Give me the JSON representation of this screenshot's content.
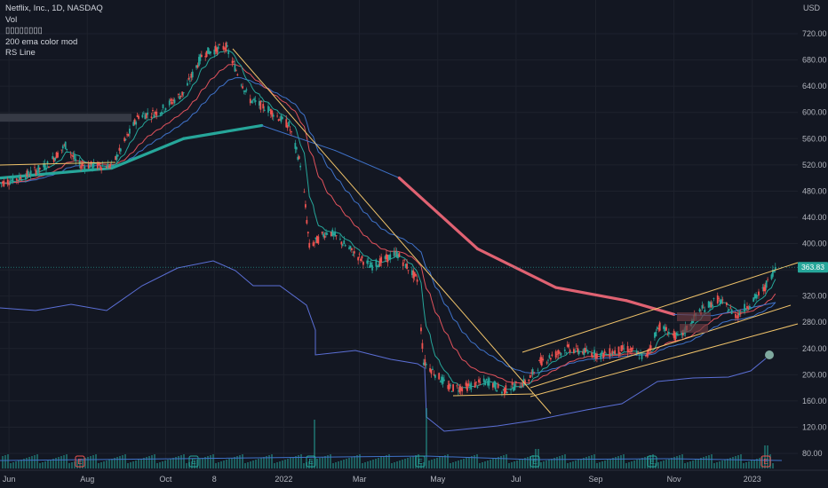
{
  "header": {
    "symbol_line": "Netflix, Inc., 1D, NASDAQ",
    "vol_label": "Vol",
    "indicator_label": "200 ema color mod",
    "rs_label": "RS Line",
    "garbled_label": "▯▯▯▯▯▯▯▯"
  },
  "currency": "USD",
  "current_price": "363.83",
  "colors": {
    "background": "#131722",
    "up": "#26a69a",
    "down": "#ef5350",
    "trendline": "#f0c36a",
    "rs_line": "#5b6fd6",
    "ema_up": "#26a69a",
    "ema_down": "#e06272",
    "ma_blue": "#3f72c9",
    "ma_red": "#e0525c"
  },
  "chart_data": {
    "type": "candlestick",
    "title": "Netflix, Inc., 1D, NASDAQ",
    "ylim": [
      60,
      740
    ],
    "y_ticks": [
      "720.00",
      "680.00",
      "640.00",
      "600.00",
      "560.00",
      "520.00",
      "480.00",
      "440.00",
      "400.00",
      "360.00",
      "320.00",
      "280.00",
      "240.00",
      "200.00",
      "160.00",
      "120.00",
      "80.00"
    ],
    "x_ticks": [
      "Jun",
      "Aug",
      "Oct",
      "8",
      "2022",
      "Mar",
      "May",
      "Jul",
      "Sep",
      "Nov",
      "2023"
    ],
    "price_path": [
      {
        "x": "2021-05-25",
        "y": 492
      },
      {
        "x": "2021-06-10",
        "y": 500
      },
      {
        "x": "2021-07-01",
        "y": 520
      },
      {
        "x": "2021-07-15",
        "y": 550
      },
      {
        "x": "2021-07-25",
        "y": 520
      },
      {
        "x": "2021-08-20",
        "y": 518
      },
      {
        "x": "2021-09-10",
        "y": 595
      },
      {
        "x": "2021-09-25",
        "y": 600
      },
      {
        "x": "2021-10-15",
        "y": 630
      },
      {
        "x": "2021-10-30",
        "y": 690
      },
      {
        "x": "2021-11-17",
        "y": 700
      },
      {
        "x": "2021-12-05",
        "y": 620
      },
      {
        "x": "2021-12-20",
        "y": 605
      },
      {
        "x": "2022-01-05",
        "y": 580
      },
      {
        "x": "2022-01-15",
        "y": 515
      },
      {
        "x": "2022-01-21",
        "y": 395
      },
      {
        "x": "2022-02-05",
        "y": 420
      },
      {
        "x": "2022-02-25",
        "y": 385
      },
      {
        "x": "2022-03-10",
        "y": 365
      },
      {
        "x": "2022-03-30",
        "y": 385
      },
      {
        "x": "2022-04-15",
        "y": 345
      },
      {
        "x": "2022-04-20",
        "y": 220
      },
      {
        "x": "2022-05-10",
        "y": 180
      },
      {
        "x": "2022-05-20",
        "y": 180
      },
      {
        "x": "2022-06-10",
        "y": 190
      },
      {
        "x": "2022-06-20",
        "y": 175
      },
      {
        "x": "2022-07-10",
        "y": 190
      },
      {
        "x": "2022-07-20",
        "y": 220
      },
      {
        "x": "2022-08-10",
        "y": 240
      },
      {
        "x": "2022-09-05",
        "y": 230
      },
      {
        "x": "2022-09-25",
        "y": 240
      },
      {
        "x": "2022-10-10",
        "y": 225
      },
      {
        "x": "2022-10-20",
        "y": 275
      },
      {
        "x": "2022-11-05",
        "y": 255
      },
      {
        "x": "2022-11-20",
        "y": 295
      },
      {
        "x": "2022-12-05",
        "y": 315
      },
      {
        "x": "2022-12-20",
        "y": 290
      },
      {
        "x": "2023-01-10",
        "y": 330
      },
      {
        "x": "2023-01-19",
        "y": 364
      }
    ],
    "ema200_path": [
      {
        "x": "2021-05-25",
        "y": 500
      },
      {
        "x": "2021-08-20",
        "y": 515
      },
      {
        "x": "2021-10-15",
        "y": 560
      },
      {
        "x": "2021-12-15",
        "y": 580
      },
      {
        "x": "2022-02-10",
        "y": 542
      },
      {
        "x": "2022-04-01",
        "y": 500
      },
      {
        "x": "2022-06-01",
        "y": 392
      },
      {
        "x": "2022-08-01",
        "y": 333
      },
      {
        "x": "2022-09-25",
        "y": 313
      },
      {
        "x": "2022-11-01",
        "y": 292
      },
      {
        "x": "2022-12-01",
        "y": 290
      },
      {
        "x": "2023-01-19",
        "y": 310
      }
    ],
    "current_price": 363.83,
    "price_scale": "USD",
    "events": [
      "E",
      "E",
      "E",
      "E",
      "E",
      "E",
      "E"
    ]
  }
}
